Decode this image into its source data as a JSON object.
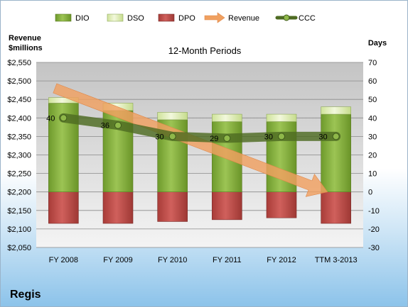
{
  "chart_data": {
    "type": "bar",
    "title": "12-Month Periods",
    "company": "Regis",
    "y_left_label": [
      "Revenue",
      "$millions"
    ],
    "y_right_label": "Days",
    "categories": [
      "FY 2008",
      "FY 2009",
      "FY 2010",
      "FY 2011",
      "FY 2012",
      "TTM 3-2013"
    ],
    "y_left_range": [
      2050,
      2550
    ],
    "y_left_ticks": [
      "$2,050",
      "$2,100",
      "$2,150",
      "$2,200",
      "$2,250",
      "$2,300",
      "$2,350",
      "$2,400",
      "$2,450",
      "$2,500",
      "$2,550"
    ],
    "y_left_tick_values": [
      2050,
      2100,
      2150,
      2200,
      2250,
      2300,
      2350,
      2400,
      2450,
      2500,
      2550
    ],
    "y_right_range": [
      -30,
      70
    ],
    "y_right_ticks": [
      "-30",
      "-20",
      "-10",
      "0",
      "10",
      "20",
      "30",
      "40",
      "50",
      "60",
      "70"
    ],
    "y_right_tick_values": [
      -30,
      -20,
      -10,
      0,
      10,
      20,
      30,
      40,
      50,
      60,
      70
    ],
    "grid": true,
    "legend_position": "top",
    "series": [
      {
        "name": "DIO",
        "type": "stacked-bar",
        "axis": "right",
        "values": [
          48,
          44,
          39,
          38,
          38,
          42
        ],
        "color": "#7fa83a"
      },
      {
        "name": "DSO",
        "type": "stacked-bar",
        "axis": "right",
        "values": [
          3,
          4,
          4,
          4,
          4,
          4
        ],
        "color": "#e4f0bf"
      },
      {
        "name": "DPO",
        "type": "bar",
        "axis": "right",
        "values": [
          -17,
          -17,
          -16,
          -15,
          -14,
          -17
        ],
        "color": "#c0504d"
      },
      {
        "name": "Revenue",
        "type": "arrow",
        "axis": "left",
        "values": [
          2480,
          2430,
          2370,
          2325,
          2275,
          2200
        ],
        "color": "#f0a060"
      },
      {
        "name": "CCC",
        "type": "line",
        "axis": "right",
        "values": [
          40,
          36,
          30,
          29,
          30,
          30
        ],
        "labels": [
          "40",
          "36",
          "30",
          "29",
          "30",
          "30"
        ],
        "color": "#5a7a2a"
      }
    ]
  }
}
